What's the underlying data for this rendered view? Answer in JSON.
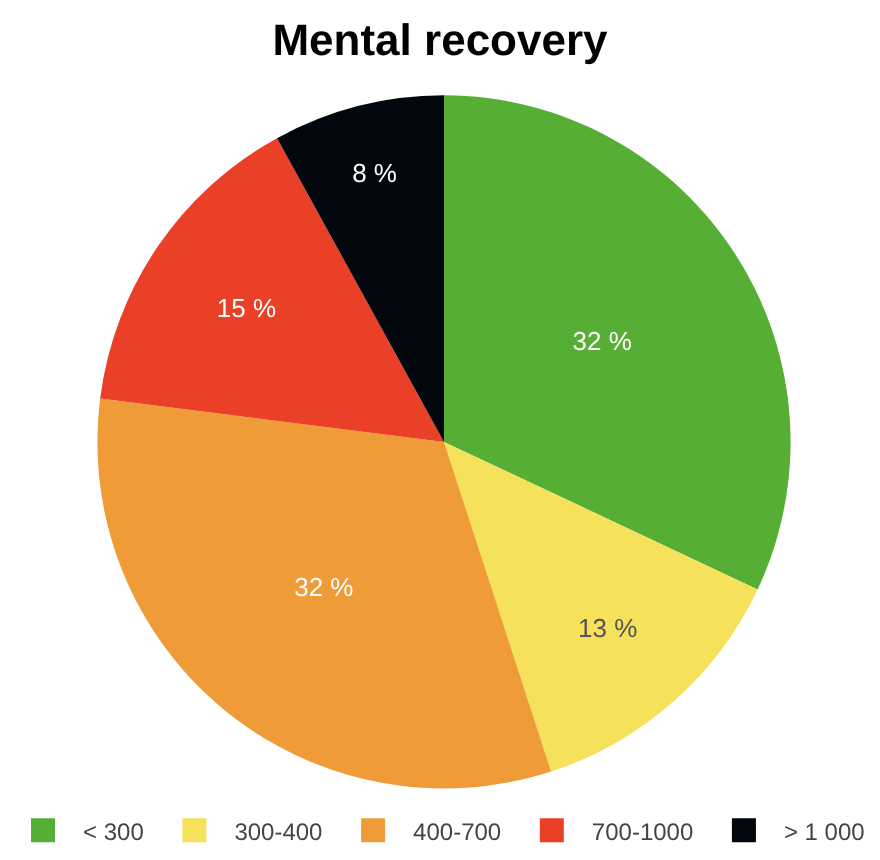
{
  "chart_data": {
    "type": "pie",
    "title": "Mental recovery",
    "categories": [
      "< 300",
      "300-400",
      "400-700",
      "700-1000",
      "> 1 000"
    ],
    "values": [
      32,
      13,
      32,
      15,
      8
    ],
    "colors": [
      "#56ae34",
      "#f5e15a",
      "#ef9b38",
      "#e94027",
      "#02060d"
    ],
    "value_labels": [
      "32 %",
      "13 %",
      "32 %",
      "15 %",
      "8 %"
    ],
    "legend": "bottom"
  }
}
